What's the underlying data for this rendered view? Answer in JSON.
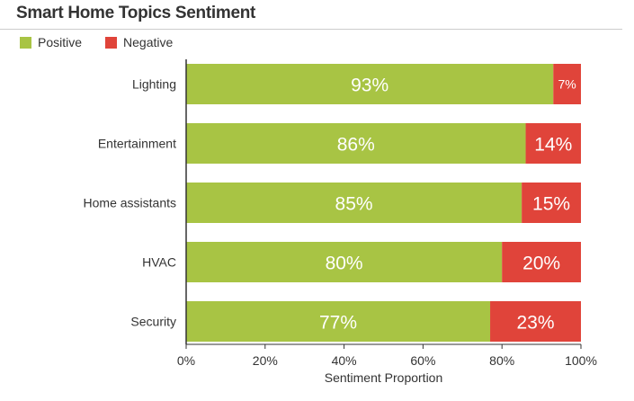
{
  "title": "Smart Home Topics Sentiment",
  "legend": [
    {
      "label": "Positive",
      "color": "#a8c444"
    },
    {
      "label": "Negative",
      "color": "#e0443a"
    }
  ],
  "chart_data": {
    "type": "bar",
    "orientation": "horizontal",
    "stacked": true,
    "title": "Smart Home Topics Sentiment",
    "xlabel": "Sentiment Proportion",
    "ylabel": "",
    "xlim": [
      0,
      100
    ],
    "x_ticks": [
      "0%",
      "20%",
      "40%",
      "60%",
      "80%",
      "100%"
    ],
    "categories": [
      "Lighting",
      "Entertainment",
      "Home assistants",
      "HVAC",
      "Security"
    ],
    "series": [
      {
        "name": "Positive",
        "color": "#a8c444",
        "values": [
          93,
          86,
          85,
          80,
          77
        ]
      },
      {
        "name": "Negative",
        "color": "#e0443a",
        "values": [
          7,
          14,
          15,
          20,
          23
        ]
      }
    ],
    "legend_position": "top-left",
    "grid": false
  }
}
